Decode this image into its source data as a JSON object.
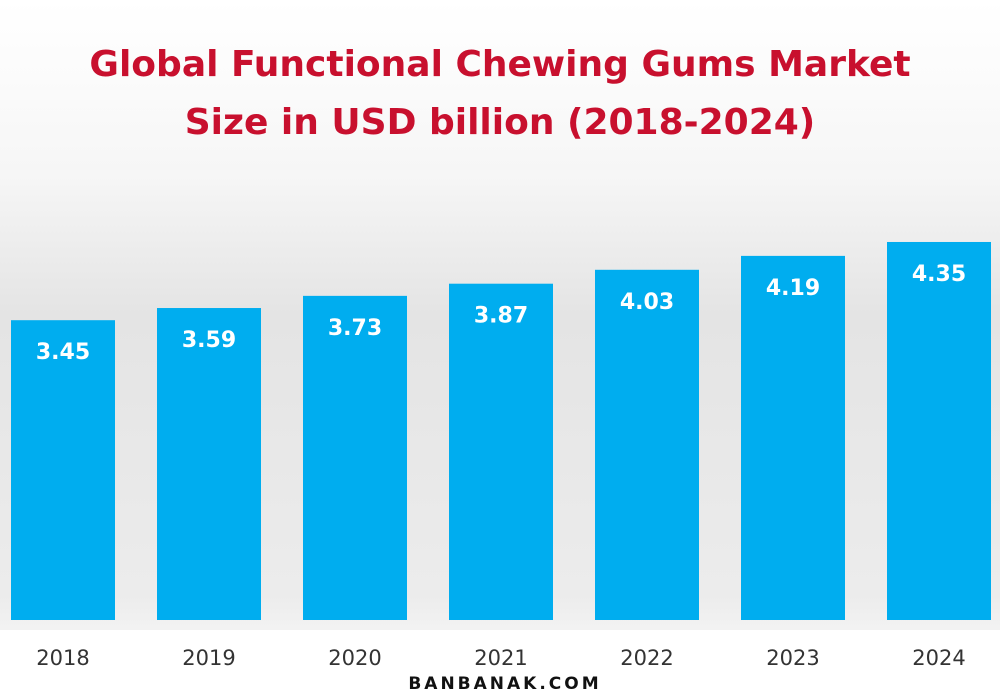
{
  "chart_data": {
    "type": "bar",
    "title": [
      "Global Functional Chewing Gums Market",
      "Size in USD billion (2018-2024)"
    ],
    "categories": [
      "2018",
      "2019",
      "2020",
      "2021",
      "2022",
      "2023",
      "2024"
    ],
    "values": [
      3.45,
      3.59,
      3.73,
      3.87,
      4.03,
      4.19,
      4.35
    ],
    "color": "#00adef"
  },
  "watermark": "BANBANAK.COM"
}
